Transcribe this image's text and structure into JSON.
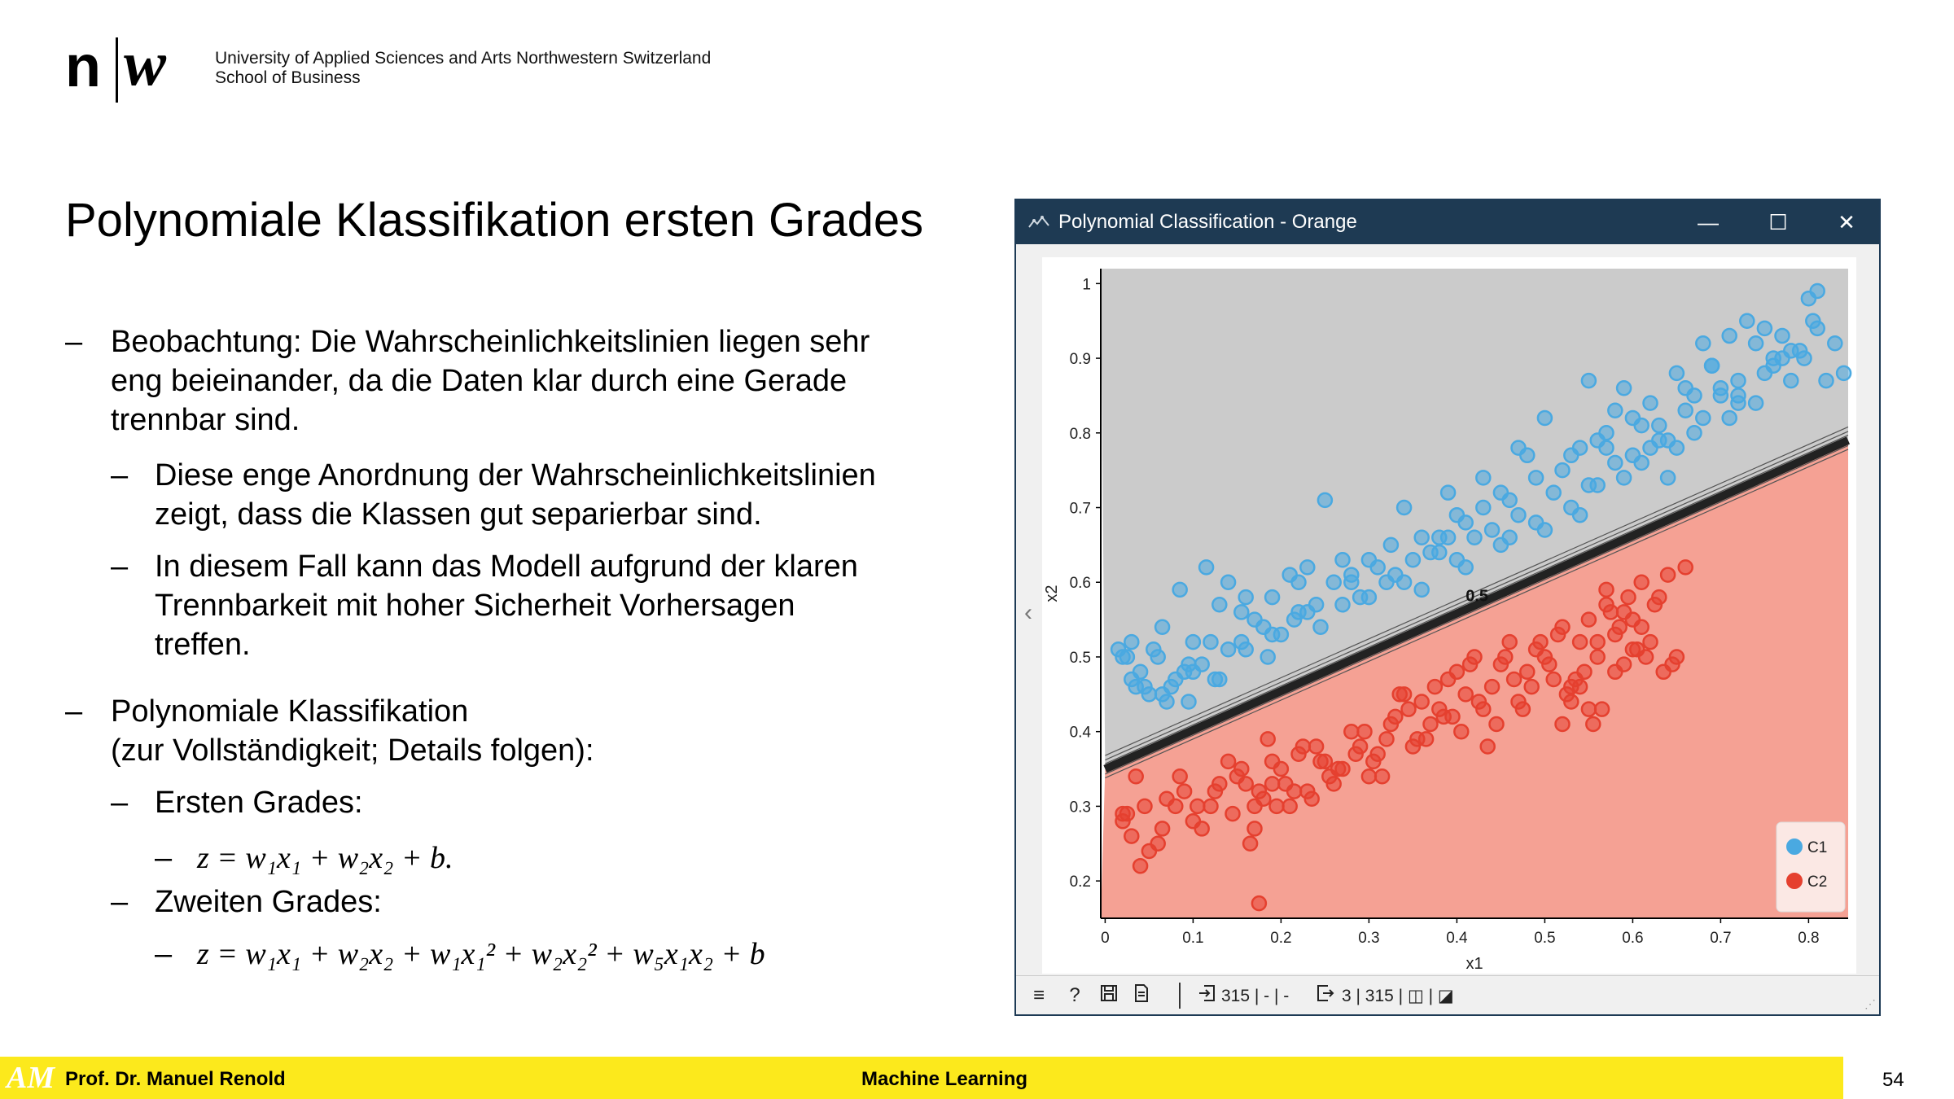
{
  "header": {
    "logo_n": "n",
    "logo_w": "w",
    "institution_line1": "University of Applied Sciences and Arts Northwestern Switzerland",
    "institution_line2": "School of Business"
  },
  "slide": {
    "title": "Polynomiale Klassifikation ersten Grades",
    "bullets": [
      {
        "dash": "–",
        "lines": [
          "Beobachtung: Die Wahrscheinlichkeitslinien liegen sehr",
          "eng beieinander, da die Daten klar durch eine Gerade",
          "trennbar sind."
        ]
      },
      {
        "dash": "–",
        "lines": [
          "Diese enge Anordnung der Wahrscheinlichkeitslinien",
          "zeigt, dass die Klassen gut separierbar sind."
        ]
      },
      {
        "dash": "–",
        "lines": [
          "In diesem Fall kann das Modell aufgrund der klaren",
          "Trennbarkeit mit hoher Sicherheit Vorhersagen",
          "treffen."
        ]
      },
      {
        "dash": "–",
        "lines": [
          "Polynomiale Klassifikation",
          "(zur Vollständigkeit; Details folgen):"
        ]
      },
      {
        "dash": "–",
        "lines": [
          "Ersten Grades:"
        ]
      },
      {
        "dash": "–",
        "formula": "z = w₁x₁ + w₂x₂ + b."
      },
      {
        "dash": "–",
        "lines": [
          "Zweiten Grades:"
        ]
      },
      {
        "dash": "–",
        "formula": "z = w₁x₁ + w₂x₂ + w₁x₁² + w₂x₂² + w₅x₁x₂ + b"
      }
    ]
  },
  "window": {
    "title": "Polynomial Classification - Orange",
    "minimize_label": "—",
    "maximize_label": "☐",
    "close_label": "✕",
    "collapse_label": "‹",
    "status": {
      "menu_icon": "≡",
      "help_icon": "?",
      "save_icon": "💾",
      "report_icon": "🗎",
      "input_text": "315 | - | -",
      "output_text": "3 | 315 | ◫ | ◪"
    }
  },
  "chart_data": {
    "type": "scatter",
    "xlabel": "x1",
    "ylabel": "x2",
    "xlim": [
      -0.005,
      0.845
    ],
    "ylim": [
      0.15,
      1.02
    ],
    "x_ticks": [
      0,
      0.1,
      0.2,
      0.3,
      0.4,
      0.5,
      0.6,
      0.7,
      0.8
    ],
    "x_tick_labels": [
      "0",
      "0.1",
      "0.2",
      "0.3",
      "0.4",
      "0.5",
      "0.6",
      "0.7",
      "0.8"
    ],
    "y_ticks": [
      0.2,
      0.3,
      0.4,
      0.5,
      0.6,
      0.7,
      0.8,
      0.9,
      1
    ],
    "y_tick_labels": [
      "0.2",
      "0.3",
      "0.4",
      "0.5",
      "0.6",
      "0.7",
      "0.8",
      "0.9",
      "1"
    ],
    "decision_boundary": {
      "label": "0.5",
      "x": [
        0,
        0.845
      ],
      "y": [
        0.35,
        0.79
      ]
    },
    "contour_offsets": [
      -0.012,
      -0.007,
      0.007,
      0.012,
      0.018
    ],
    "regions": {
      "above_color": "#cbcbcb",
      "below_color": "#f5a194"
    },
    "legend": {
      "position": "bottom-right",
      "entries": [
        "C1",
        "C2"
      ]
    },
    "series": [
      {
        "name": "C1",
        "color": "#4aa9e1",
        "x": [
          0.02,
          0.035,
          0.03,
          0.04,
          0.055,
          0.065,
          0.075,
          0.085,
          0.095,
          0.1,
          0.115,
          0.13,
          0.14,
          0.155,
          0.17,
          0.19,
          0.21,
          0.22,
          0.23,
          0.25,
          0.27,
          0.28,
          0.3,
          0.31,
          0.325,
          0.34,
          0.36,
          0.38,
          0.39,
          0.4,
          0.41,
          0.43,
          0.45,
          0.46,
          0.47,
          0.48,
          0.5,
          0.52,
          0.53,
          0.54,
          0.55,
          0.56,
          0.57,
          0.58,
          0.59,
          0.6,
          0.61,
          0.62,
          0.63,
          0.64,
          0.65,
          0.66,
          0.67,
          0.68,
          0.69,
          0.7,
          0.71,
          0.72,
          0.73,
          0.74,
          0.75,
          0.76,
          0.77,
          0.78,
          0.79,
          0.8,
          0.81,
          0.82,
          0.83,
          0.84,
          0.03,
          0.06,
          0.09,
          0.12,
          0.16,
          0.2,
          0.24,
          0.28,
          0.33,
          0.37,
          0.42,
          0.44,
          0.49,
          0.51,
          0.57,
          0.61,
          0.66,
          0.69,
          0.72,
          0.75,
          0.795,
          0.805,
          0.7,
          0.64,
          0.58,
          0.55,
          0.47,
          0.43,
          0.39,
          0.35,
          0.26,
          0.22,
          0.18,
          0.14,
          0.11,
          0.08,
          0.05,
          0.025,
          0.6,
          0.65,
          0.68,
          0.72,
          0.76,
          0.78,
          0.63,
          0.59,
          0.54,
          0.5,
          0.46,
          0.41,
          0.36,
          0.32,
          0.29,
          0.245,
          0.215,
          0.185,
          0.155,
          0.125,
          0.095,
          0.065,
          0.045,
          0.015,
          0.81,
          0.77,
          0.74,
          0.71,
          0.67,
          0.62,
          0.56,
          0.53,
          0.49,
          0.45,
          0.4,
          0.38,
          0.34,
          0.3,
          0.27,
          0.23,
          0.19,
          0.16,
          0.13,
          0.1,
          0.07
        ],
        "y": [
          0.5,
          0.46,
          0.52,
          0.48,
          0.51,
          0.54,
          0.46,
          0.59,
          0.49,
          0.52,
          0.62,
          0.57,
          0.6,
          0.56,
          0.55,
          0.58,
          0.61,
          0.6,
          0.62,
          0.71,
          0.63,
          0.61,
          0.58,
          0.62,
          0.65,
          0.7,
          0.66,
          0.64,
          0.72,
          0.69,
          0.68,
          0.74,
          0.72,
          0.71,
          0.78,
          0.77,
          0.82,
          0.75,
          0.77,
          0.78,
          0.87,
          0.79,
          0.8,
          0.83,
          0.86,
          0.82,
          0.76,
          0.84,
          0.81,
          0.74,
          0.88,
          0.86,
          0.85,
          0.92,
          0.89,
          0.86,
          0.93,
          0.87,
          0.95,
          0.92,
          0.94,
          0.9,
          0.93,
          0.87,
          0.91,
          0.98,
          0.99,
          0.87,
          0.92,
          0.88,
          0.47,
          0.5,
          0.48,
          0.52,
          0.58,
          0.53,
          0.57,
          0.6,
          0.61,
          0.64,
          0.66,
          0.67,
          0.74,
          0.72,
          0.78,
          0.81,
          0.83,
          0.89,
          0.84,
          0.88,
          0.9,
          0.95,
          0.85,
          0.79,
          0.76,
          0.73,
          0.69,
          0.7,
          0.66,
          0.63,
          0.6,
          0.56,
          0.54,
          0.51,
          0.49,
          0.47,
          0.45,
          0.5,
          0.77,
          0.78,
          0.82,
          0.85,
          0.89,
          0.91,
          0.79,
          0.74,
          0.69,
          0.67,
          0.66,
          0.62,
          0.59,
          0.6,
          0.58,
          0.54,
          0.55,
          0.5,
          0.52,
          0.47,
          0.44,
          0.45,
          0.46,
          0.51,
          0.94,
          0.9,
          0.84,
          0.82,
          0.8,
          0.78,
          0.73,
          0.7,
          0.68,
          0.65,
          0.63,
          0.66,
          0.6,
          0.63,
          0.57,
          0.56,
          0.53,
          0.51,
          0.47,
          0.48,
          0.44
        ]
      },
      {
        "name": "C2",
        "color": "#e5402f",
        "x": [
          0.02,
          0.03,
          0.04,
          0.06,
          0.08,
          0.09,
          0.1,
          0.12,
          0.14,
          0.15,
          0.16,
          0.17,
          0.18,
          0.19,
          0.2,
          0.21,
          0.22,
          0.23,
          0.24,
          0.25,
          0.26,
          0.27,
          0.28,
          0.29,
          0.3,
          0.31,
          0.32,
          0.33,
          0.34,
          0.35,
          0.36,
          0.37,
          0.38,
          0.39,
          0.4,
          0.41,
          0.42,
          0.43,
          0.44,
          0.45,
          0.46,
          0.47,
          0.48,
          0.49,
          0.5,
          0.51,
          0.52,
          0.53,
          0.54,
          0.55,
          0.56,
          0.57,
          0.58,
          0.59,
          0.6,
          0.61,
          0.62,
          0.63,
          0.64,
          0.65,
          0.66,
          0.02,
          0.05,
          0.07,
          0.11,
          0.13,
          0.17,
          0.19,
          0.215,
          0.235,
          0.255,
          0.285,
          0.305,
          0.325,
          0.345,
          0.365,
          0.385,
          0.405,
          0.425,
          0.445,
          0.465,
          0.485,
          0.505,
          0.525,
          0.545,
          0.565,
          0.585,
          0.605,
          0.625,
          0.645,
          0.155,
          0.175,
          0.195,
          0.225,
          0.265,
          0.295,
          0.335,
          0.375,
          0.415,
          0.455,
          0.495,
          0.535,
          0.575,
          0.615,
          0.185,
          0.205,
          0.245,
          0.315,
          0.355,
          0.395,
          0.435,
          0.475,
          0.515,
          0.555,
          0.595,
          0.635,
          0.175,
          0.165,
          0.145,
          0.125,
          0.105,
          0.085,
          0.065,
          0.045,
          0.035,
          0.025,
          0.59,
          0.57,
          0.61,
          0.6,
          0.58,
          0.56,
          0.53,
          0.52,
          0.54,
          0.55
        ],
        "y": [
          0.28,
          0.26,
          0.22,
          0.25,
          0.3,
          0.32,
          0.28,
          0.3,
          0.36,
          0.34,
          0.33,
          0.27,
          0.31,
          0.33,
          0.35,
          0.3,
          0.37,
          0.32,
          0.38,
          0.36,
          0.33,
          0.35,
          0.4,
          0.38,
          0.34,
          0.37,
          0.39,
          0.42,
          0.45,
          0.38,
          0.44,
          0.41,
          0.43,
          0.47,
          0.48,
          0.45,
          0.5,
          0.43,
          0.46,
          0.49,
          0.52,
          0.44,
          0.48,
          0.51,
          0.5,
          0.47,
          0.54,
          0.46,
          0.52,
          0.55,
          0.5,
          0.57,
          0.53,
          0.49,
          0.55,
          0.6,
          0.52,
          0.58,
          0.61,
          0.5,
          0.62,
          0.29,
          0.24,
          0.31,
          0.27,
          0.33,
          0.3,
          0.36,
          0.32,
          0.31,
          0.34,
          0.37,
          0.36,
          0.41,
          0.43,
          0.39,
          0.42,
          0.4,
          0.44,
          0.41,
          0.47,
          0.46,
          0.49,
          0.45,
          0.48,
          0.43,
          0.54,
          0.51,
          0.57,
          0.49,
          0.35,
          0.32,
          0.3,
          0.38,
          0.35,
          0.4,
          0.45,
          0.46,
          0.49,
          0.5,
          0.52,
          0.47,
          0.56,
          0.5,
          0.39,
          0.33,
          0.36,
          0.34,
          0.39,
          0.42,
          0.38,
          0.43,
          0.53,
          0.41,
          0.58,
          0.48,
          0.17,
          0.25,
          0.29,
          0.32,
          0.3,
          0.34,
          0.27,
          0.3,
          0.34,
          0.29,
          0.56,
          0.59,
          0.54,
          0.51,
          0.48,
          0.52,
          0.44,
          0.41,
          0.46,
          0.43
        ]
      }
    ]
  },
  "footer": {
    "logo": "AM",
    "author": "Prof. Dr. Manuel Renold",
    "course": "Machine Learning",
    "page_number": "54"
  }
}
